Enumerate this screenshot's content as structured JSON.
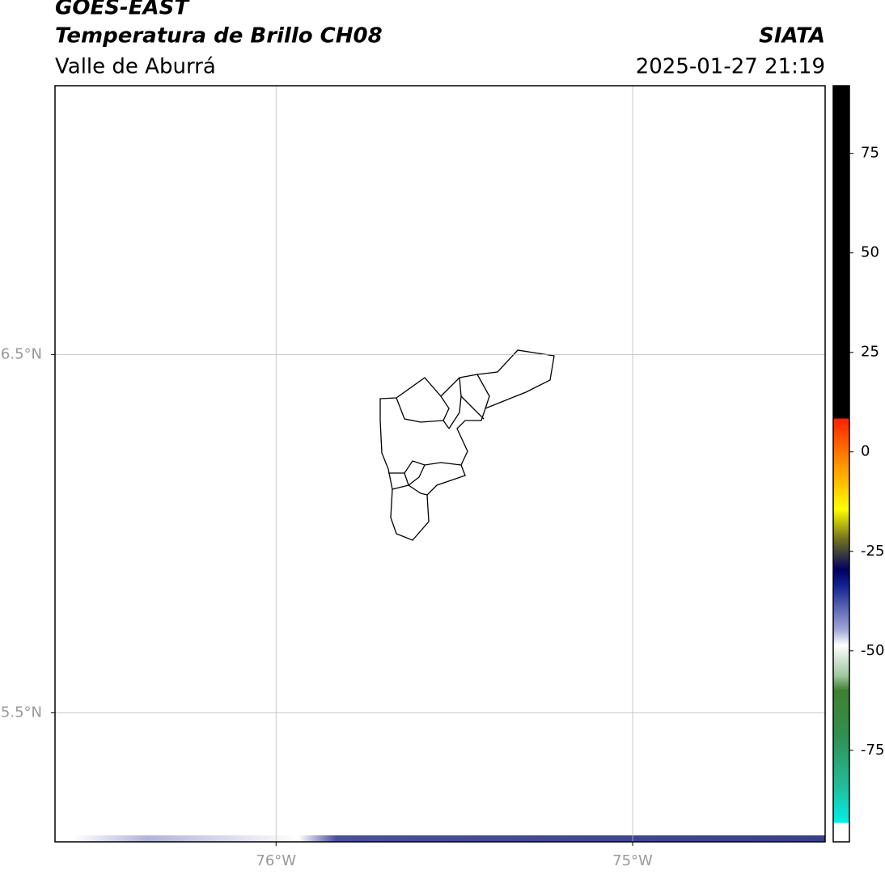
{
  "header": {
    "title": "GOES-EAST",
    "subtitle": "Temperatura de Brillo CH08",
    "region": "Valle de Aburrá",
    "source": "SIATA",
    "timestamp": "2025-01-27 21:19"
  },
  "map": {
    "xlim": [
      -76.62,
      -74.46
    ],
    "ylim": [
      5.14,
      7.25
    ],
    "lat_ticks": [
      {
        "value": 6.5,
        "label": "6.5°N"
      },
      {
        "value": 5.5,
        "label": "5.5°N"
      }
    ],
    "lon_ticks": [
      {
        "value": -76,
        "label": "76°W"
      },
      {
        "value": -75,
        "label": "75°W"
      }
    ]
  },
  "colorbar": {
    "range": [
      -98,
      92
    ],
    "ticks": [
      75,
      50,
      25,
      0,
      -25,
      -50,
      -75
    ]
  }
}
